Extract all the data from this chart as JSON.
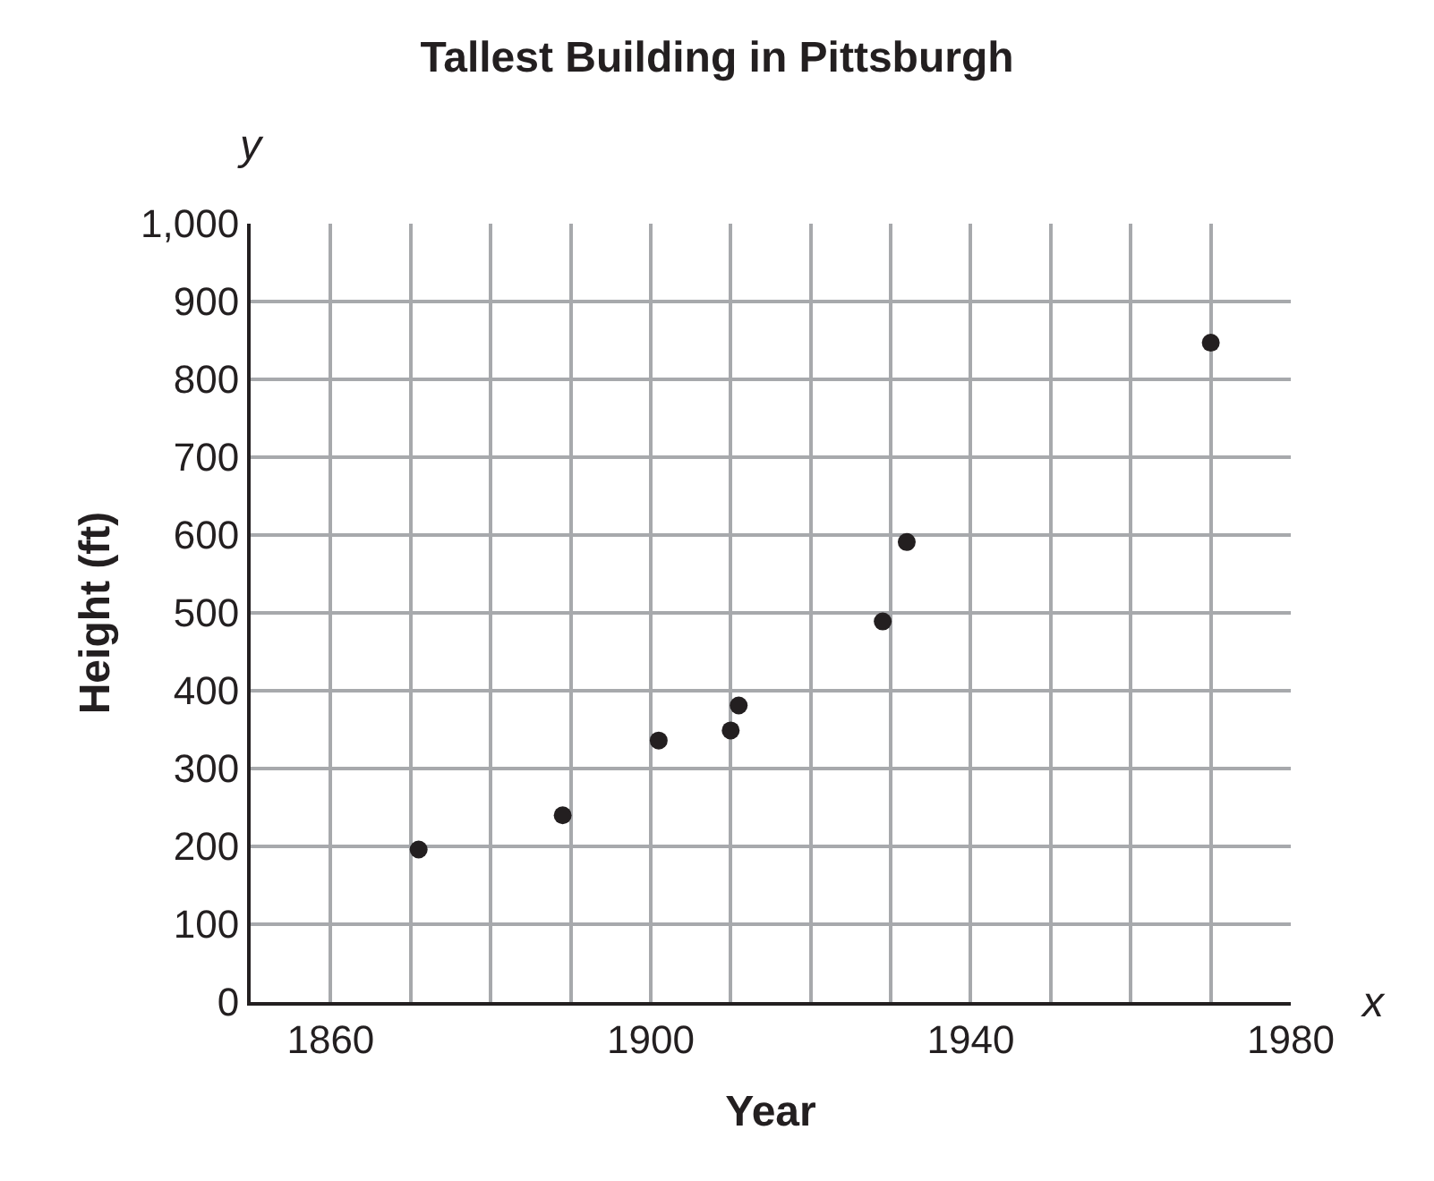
{
  "chart_data": {
    "type": "scatter",
    "title": "Tallest Building in Pittsburgh",
    "xlabel": "Year",
    "ylabel": "Height (ft)",
    "x": [
      1871,
      1889,
      1901,
      1910,
      1911,
      1929,
      1932,
      1970
    ],
    "series": [
      {
        "color": "#231f20",
        "values": [
          196,
          240,
          336,
          349,
          381,
          489,
          591,
          847
        ]
      }
    ],
    "xlim": [
      1850,
      1980
    ],
    "xticks": [
      {
        "value": 1850,
        "label": null
      },
      1860,
      {
        "value": 1870,
        "label": null
      },
      {
        "value": 1880,
        "label": null
      },
      {
        "value": 1890,
        "label": null
      },
      1900,
      {
        "value": 1910,
        "label": null
      },
      {
        "value": 1920,
        "label": null
      },
      {
        "value": 1930,
        "label": null
      },
      1940,
      {
        "value": 1950,
        "label": null
      },
      {
        "value": 1960,
        "label": null
      },
      {
        "value": 1970,
        "label": null
      },
      1980
    ],
    "ylim": [
      0,
      1000
    ],
    "yticks": [
      0,
      100,
      200,
      300,
      400,
      500,
      600,
      700,
      800,
      900,
      {
        "value": 1000,
        "label": "1,000"
      }
    ],
    "grid": true,
    "marker": "circle",
    "legend": false,
    "annotations": [
      "x",
      "y"
    ]
  }
}
